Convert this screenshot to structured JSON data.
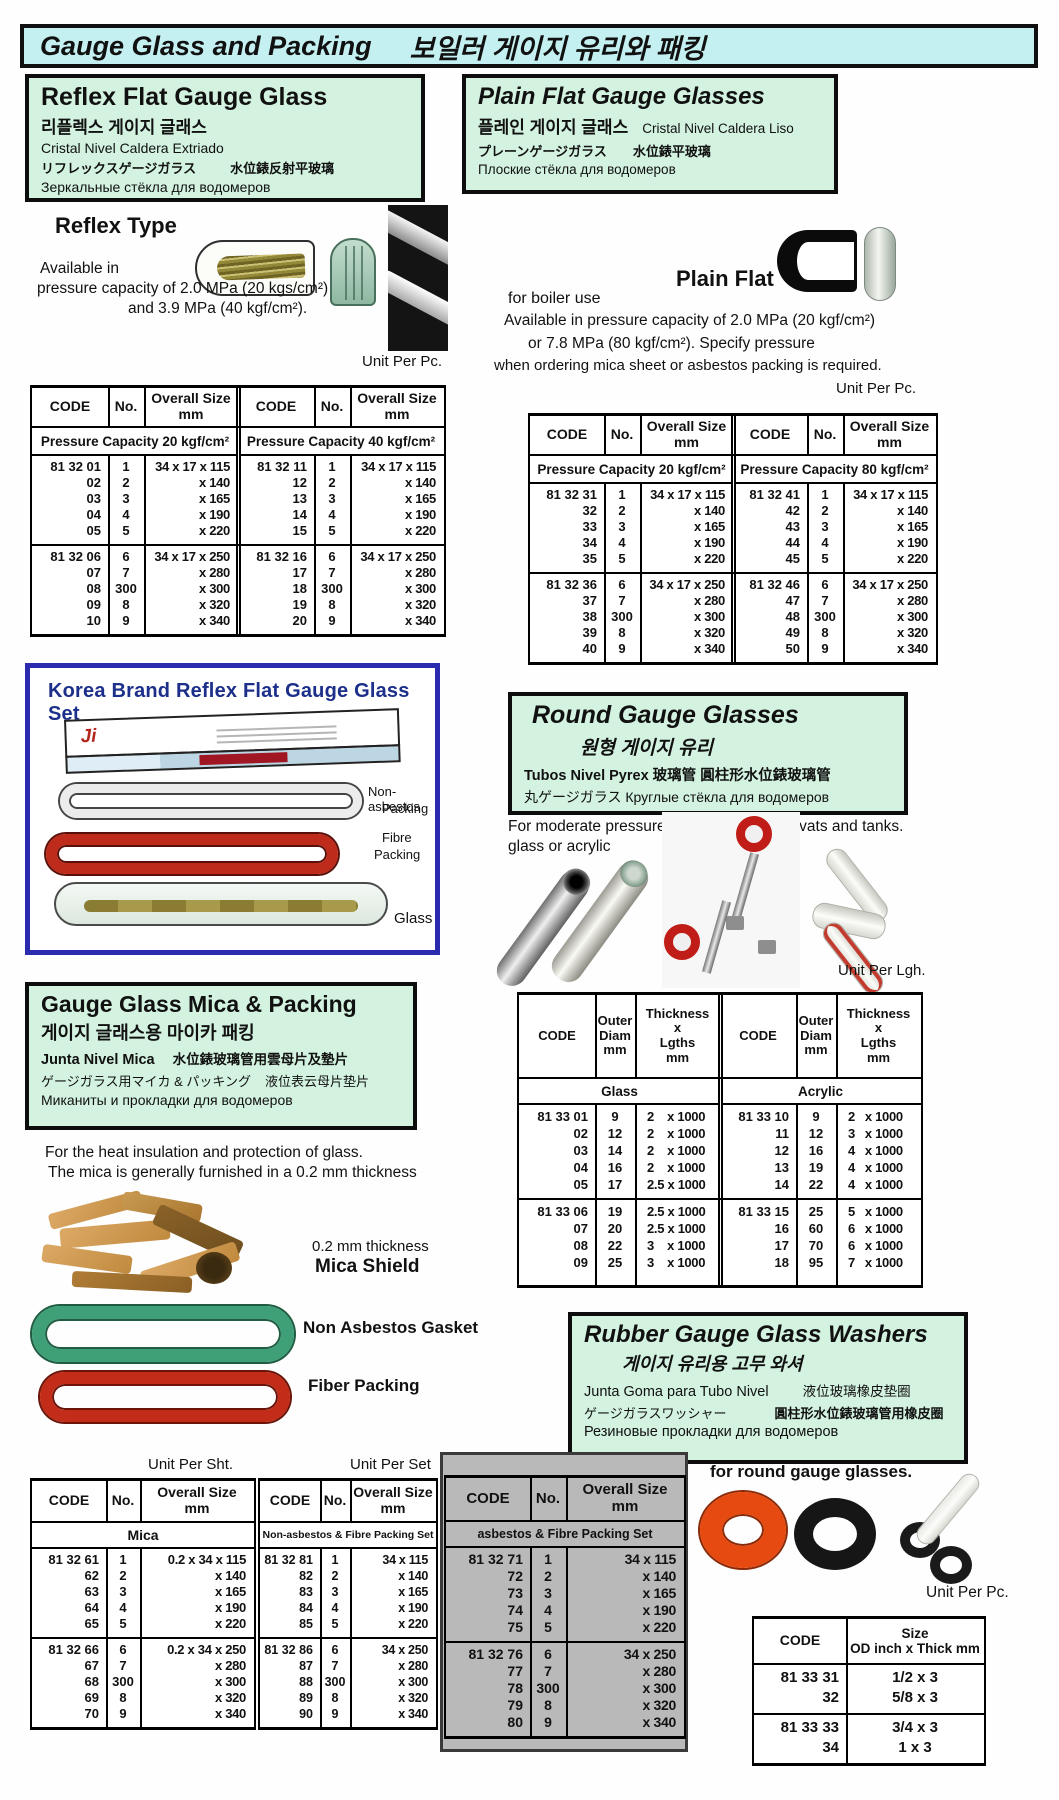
{
  "banner": {
    "en": "Gauge Glass and Packing",
    "ko": "보일러 게이지 유리와 패킹"
  },
  "reflex_box": {
    "title": "Reflex Flat Gauge Glass",
    "ko": "리플렉스 게이지 글래스",
    "es": "Cristal Nivel Caldera Extriado",
    "ja": "リフレックスゲージガラス",
    "zh": "水位錶反射平玻璃",
    "ru": "Зеркальные стёкла для водомеров"
  },
  "reflex": {
    "type_label": "Reflex Type",
    "avail1": "Available in",
    "avail2": "pressure capacity of 2.0 MPa  (20 kgs/cm²)",
    "avail3": "and 3.9 MPa (40 kgf/cm²).",
    "unit": "Unit Per Pc."
  },
  "shared": {
    "h_code": "CODE",
    "h_no": "No.",
    "h_size": "Overall Size\nmm"
  },
  "reflex_table": {
    "sub_left": "Pressure Capacity 20 kgf/cm²",
    "sub_right": "Pressure Capacity 40 kgf/cm²",
    "left": [
      [
        [
          "81 32 01",
          "1",
          "34 x 17 x 115"
        ],
        [
          "02",
          "2",
          "x 140"
        ],
        [
          "03",
          "3",
          "x 165"
        ],
        [
          "04",
          "4",
          "x 190"
        ],
        [
          "05",
          "5",
          "x 220"
        ]
      ],
      [
        [
          "81 32 06",
          "6",
          "34 x 17 x 250"
        ],
        [
          "07",
          "7",
          "x 280"
        ],
        [
          "08",
          "300",
          "x 300"
        ],
        [
          "09",
          "8",
          "x 320"
        ],
        [
          "10",
          "9",
          "x 340"
        ]
      ]
    ],
    "right": [
      [
        [
          "81 32 11",
          "1",
          "34 x 17 x 115"
        ],
        [
          "12",
          "2",
          "x 140"
        ],
        [
          "13",
          "3",
          "x 165"
        ],
        [
          "14",
          "4",
          "x 190"
        ],
        [
          "15",
          "5",
          "x 220"
        ]
      ],
      [
        [
          "81 32 16",
          "6",
          "34 x 17 x 250"
        ],
        [
          "17",
          "7",
          "x 280"
        ],
        [
          "18",
          "300",
          "x 300"
        ],
        [
          "19",
          "8",
          "x 320"
        ],
        [
          "20",
          "9",
          "x 340"
        ]
      ]
    ]
  },
  "plain_box": {
    "title": "Plain Flat Gauge Glasses",
    "ko": "플레인 게이지 글래스",
    "es": "Cristal Nivel Caldera Liso",
    "ja": "プレーンゲージガラス",
    "zh": "水位錶平玻璃",
    "ru": "Плоские стёкла для водомеров"
  },
  "plain": {
    "label": "Plain Flat",
    "boiler": "for boiler use",
    "line1": "Available in   pressure capacity of 2.0 MPa (20 kgf/cm²)",
    "line2": "or 7.8 MPa  (80 kgf/cm²). Specify pressure",
    "line3": "when ordering mica sheet or asbestos packing is required.",
    "unit": "Unit Per Pc."
  },
  "plain_table": {
    "sub_left": "Pressure Capacity 20 kgf/cm²",
    "sub_right": "Pressure Capacity 80 kgf/cm²",
    "left": [
      [
        [
          "81 32 31",
          "1",
          "34 x 17 x 115"
        ],
        [
          "32",
          "2",
          "x 140"
        ],
        [
          "33",
          "3",
          "x 165"
        ],
        [
          "34",
          "4",
          "x 190"
        ],
        [
          "35",
          "5",
          "x 220"
        ]
      ],
      [
        [
          "81 32 36",
          "6",
          "34 x 17 x 250"
        ],
        [
          "37",
          "7",
          "x 280"
        ],
        [
          "38",
          "300",
          "x 300"
        ],
        [
          "39",
          "8",
          "x 320"
        ],
        [
          "40",
          "9",
          "x 340"
        ]
      ]
    ],
    "right": [
      [
        [
          "81 32 41",
          "1",
          "34 x 17 x 115"
        ],
        [
          "42",
          "2",
          "x 140"
        ],
        [
          "43",
          "3",
          "x 165"
        ],
        [
          "44",
          "4",
          "x 190"
        ],
        [
          "45",
          "5",
          "x 220"
        ]
      ],
      [
        [
          "81 32 46",
          "6",
          "34 x 17 x 250"
        ],
        [
          "47",
          "7",
          "x 280"
        ],
        [
          "48",
          "300",
          "x 300"
        ],
        [
          "49",
          "8",
          "x 320"
        ],
        [
          "50",
          "9",
          "x 340"
        ]
      ]
    ]
  },
  "korea": {
    "title": "Korea Brand Reflex Flat Gauge Glass Set",
    "logo": "Ji",
    "label_na1": "Non-asbestos",
    "label_na2": "Packing",
    "label_f1": "Fibre",
    "label_f2": "Packing",
    "label_glass": "Glass"
  },
  "round_box": {
    "title": "Round Gauge Glasses",
    "ko": "원형 게이지 유리",
    "es_zh": "Tubos Nivel Pyrex  玻璃管  圓柱形水位錶玻璃管",
    "ja_ru": "丸ゲージガラス  Круглые стёкла для водомеров"
  },
  "round": {
    "text1": "For moderate pressure service on boilers, vats and tanks.",
    "text2": "glass or acrylic",
    "unit": "Unit Per Lgh.",
    "h_code": "CODE",
    "h_diam": "Outer\nDiam\nmm",
    "h_thick": "Thickness\nx\nLgths\nmm",
    "sub_left": "Glass",
    "sub_right": "Acrylic",
    "glass": [
      [
        [
          "81 33 01",
          "9",
          "2    x 1000"
        ],
        [
          "02",
          "12",
          "2    x 1000"
        ],
        [
          "03",
          "14",
          "2    x 1000"
        ],
        [
          "04",
          "16",
          "2    x 1000"
        ],
        [
          "05",
          "17",
          "2.5 x 1000"
        ]
      ],
      [
        [
          "81 33 06",
          "19",
          "2.5 x 1000"
        ],
        [
          "07",
          "20",
          "2.5 x 1000"
        ],
        [
          "08",
          "22",
          "3    x 1000"
        ],
        [
          "09",
          "25",
          "3    x 1000"
        ]
      ]
    ],
    "acrylic": [
      [
        [
          "81 33 10",
          "9",
          "2   x 1000"
        ],
        [
          "11",
          "12",
          "3   x 1000"
        ],
        [
          "12",
          "16",
          "4   x 1000"
        ],
        [
          "13",
          "19",
          "4   x 1000"
        ],
        [
          "14",
          "22",
          "4   x 1000"
        ]
      ],
      [
        [
          "81 33 15",
          "25",
          "5   x 1000"
        ],
        [
          "16",
          "60",
          "6   x 1000"
        ],
        [
          "17",
          "70",
          "6   x 1000"
        ],
        [
          "18",
          "95",
          "7   x 1000"
        ]
      ]
    ]
  },
  "mica_box": {
    "title": "Gauge Glass Mica & Packing",
    "ko": "게이지 글래스용 마이카 패킹",
    "es": "Junta Nivel Mica",
    "zh": "水位錶玻璃管用雲母片及墊片",
    "ja": "ゲージガラス用マイカ & パッキング",
    "zh2": "液位表云母片垫片",
    "ru": "Миканиты и прокладки для водомеров"
  },
  "mica": {
    "text1": "For the heat insulation and protection of glass.",
    "text2": "The mica is generally furnished in a 0.2 mm thickness",
    "lab_thick": "0.2 mm thickness",
    "lab_shield": "Mica Shield",
    "lab_gasket": "Non Asbestos Gasket",
    "lab_fiber": "Fiber Packing"
  },
  "bottom": {
    "unit_sht": "Unit Per Sht.",
    "unit_set": "Unit Per Set",
    "sub_mica": "Mica",
    "sub_nonasb": "Non-asbestos & Fibre Packing Set",
    "sub_asb": "asbestos &  Fibre Packing Set",
    "mica": [
      [
        [
          "81 32 61",
          "1",
          "0.2 x 34 x 115"
        ],
        [
          "62",
          "2",
          "x 140"
        ],
        [
          "63",
          "3",
          "x 165"
        ],
        [
          "64",
          "4",
          "x 190"
        ],
        [
          "65",
          "5",
          "x 220"
        ]
      ],
      [
        [
          "81 32 66",
          "6",
          "0.2 x 34 x 250"
        ],
        [
          "67",
          "7",
          "x 280"
        ],
        [
          "68",
          "300",
          "x 300"
        ],
        [
          "69",
          "8",
          "x 320"
        ],
        [
          "70",
          "9",
          "x 340"
        ]
      ]
    ],
    "nonasb": [
      [
        [
          "81 32 81",
          "1",
          "34 x 115"
        ],
        [
          "82",
          "2",
          "x 140"
        ],
        [
          "83",
          "3",
          "x 165"
        ],
        [
          "84",
          "4",
          "x 190"
        ],
        [
          "85",
          "5",
          "x 220"
        ]
      ],
      [
        [
          "81 32 86",
          "6",
          "34 x 250"
        ],
        [
          "87",
          "7",
          "x 280"
        ],
        [
          "88",
          "300",
          "x 300"
        ],
        [
          "89",
          "8",
          "x 320"
        ],
        [
          "90",
          "9",
          "x 340"
        ]
      ]
    ],
    "asb": [
      [
        [
          "81 32 71",
          "1",
          "34 x 115"
        ],
        [
          "72",
          "2",
          "x 140"
        ],
        [
          "73",
          "3",
          "x 165"
        ],
        [
          "74",
          "4",
          "x 190"
        ],
        [
          "75",
          "5",
          "x 220"
        ]
      ],
      [
        [
          "81 32 76",
          "6",
          "34 x 250"
        ],
        [
          "77",
          "7",
          "x 280"
        ],
        [
          "78",
          "300",
          "x 300"
        ],
        [
          "79",
          "8",
          "x 320"
        ],
        [
          "80",
          "9",
          "x 340"
        ]
      ]
    ]
  },
  "rubber_box": {
    "title": "Rubber Gauge Glass Washers",
    "ko": "게이지 유리용 고무 와셔",
    "es": "Junta Goma para Tubo Nivel",
    "zh": "液位玻璃橡皮垫圈",
    "ja": "ゲージガラスワッシャー",
    "zh2": "圓柱形水位錶玻璃管用橡皮圈",
    "ru": "Резиновые прокладки для водомеров"
  },
  "washers": {
    "note": "for round gauge glasses.",
    "unit": "Unit Per Pc.",
    "h_code": "CODE",
    "h_size": "Size\nOD inch x Thick mm",
    "rows": [
      [
        [
          "81 33 31",
          "1/2 x 3"
        ],
        [
          "32",
          "5/8 x 3"
        ]
      ],
      [
        [
          "81 33 33",
          "3/4 x 3"
        ],
        [
          "34",
          "1 x 3"
        ]
      ]
    ]
  },
  "colors": {
    "banner_bg": "#c5f0f1",
    "section_box_bg": "#d3f2e0",
    "korea_border": "#2b2bb0",
    "gray_table_bg": "#b9b9b9",
    "orange_washer": "#e64a10",
    "red_fibre": "#c22c18",
    "green_gasket": "#3fa077"
  }
}
